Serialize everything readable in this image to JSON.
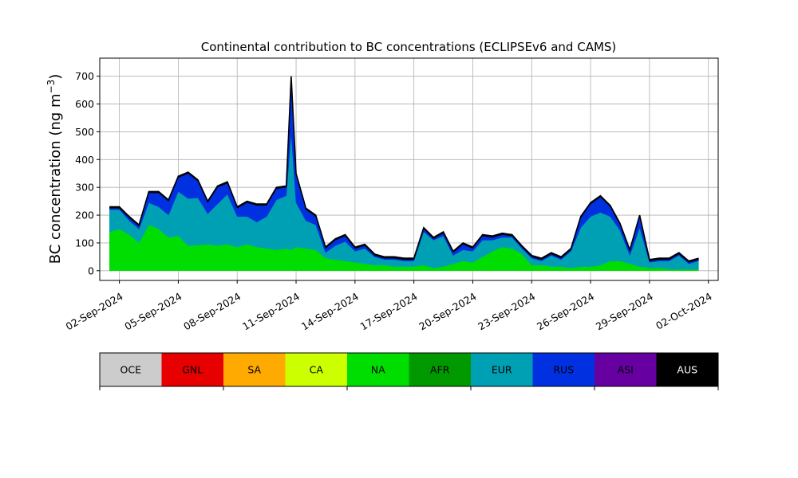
{
  "chart_data": {
    "type": "area",
    "title": "Continental contribution to BC concentrations (ECLIPSEv6 and CAMS)",
    "ylabel": "BC concentration (ng m",
    "ylabel_sup": "−3",
    "ylabel_close": ")",
    "ylim": [
      -35,
      765
    ],
    "xlim": [
      "2024-09-01T00:00",
      "2024-10-02T12:00"
    ],
    "yticks": [
      0,
      100,
      200,
      300,
      400,
      500,
      600,
      700
    ],
    "xticks": [
      "2024-09-02",
      "2024-09-05",
      "2024-09-08",
      "2024-09-11",
      "2024-09-14",
      "2024-09-17",
      "2024-09-20",
      "2024-09-23",
      "2024-09-26",
      "2024-09-29",
      "2024-10-02"
    ],
    "xtick_labels": [
      "02-Sep-2024",
      "05-Sep-2024",
      "08-Sep-2024",
      "11-Sep-2024",
      "14-Sep-2024",
      "17-Sep-2024",
      "20-Sep-2024",
      "23-Sep-2024",
      "26-Sep-2024",
      "29-Sep-2024",
      "02-Oct-2024"
    ],
    "grid": true,
    "stack_order": [
      "NA",
      "EUR",
      "RUS",
      "AUS"
    ],
    "x": [
      "2024-09-01T12:00",
      "2024-09-02T00:00",
      "2024-09-02T12:00",
      "2024-09-03T00:00",
      "2024-09-03T12:00",
      "2024-09-04T00:00",
      "2024-09-04T12:00",
      "2024-09-05T00:00",
      "2024-09-05T12:00",
      "2024-09-06T00:00",
      "2024-09-06T12:00",
      "2024-09-07T00:00",
      "2024-09-07T12:00",
      "2024-09-08T00:00",
      "2024-09-08T12:00",
      "2024-09-09T00:00",
      "2024-09-09T12:00",
      "2024-09-10T00:00",
      "2024-09-10T12:00",
      "2024-09-10T18:00",
      "2024-09-11T00:00",
      "2024-09-11T12:00",
      "2024-09-12T00:00",
      "2024-09-12T12:00",
      "2024-09-13T00:00",
      "2024-09-13T12:00",
      "2024-09-14T00:00",
      "2024-09-14T12:00",
      "2024-09-15T00:00",
      "2024-09-15T12:00",
      "2024-09-16T00:00",
      "2024-09-16T12:00",
      "2024-09-17T00:00",
      "2024-09-17T12:00",
      "2024-09-18T00:00",
      "2024-09-18T12:00",
      "2024-09-19T00:00",
      "2024-09-19T12:00",
      "2024-09-20T00:00",
      "2024-09-20T12:00",
      "2024-09-21T00:00",
      "2024-09-21T12:00",
      "2024-09-22T00:00",
      "2024-09-22T12:00",
      "2024-09-23T00:00",
      "2024-09-23T12:00",
      "2024-09-24T00:00",
      "2024-09-24T12:00",
      "2024-09-25T00:00",
      "2024-09-25T12:00",
      "2024-09-26T00:00",
      "2024-09-26T12:00",
      "2024-09-27T00:00",
      "2024-09-27T12:00",
      "2024-09-28T00:00",
      "2024-09-28T12:00",
      "2024-09-29T00:00",
      "2024-09-29T12:00",
      "2024-09-30T00:00",
      "2024-09-30T12:00",
      "2024-10-01T00:00",
      "2024-10-01T12:00"
    ],
    "series": [
      {
        "name": "NA",
        "color": "#00dd00",
        "values": [
          140,
          150,
          130,
          100,
          165,
          150,
          120,
          125,
          90,
          92,
          95,
          90,
          95,
          85,
          95,
          85,
          80,
          75,
          80,
          75,
          85,
          80,
          75,
          45,
          40,
          35,
          30,
          25,
          20,
          20,
          15,
          15,
          15,
          20,
          10,
          15,
          25,
          35,
          30,
          50,
          70,
          85,
          80,
          60,
          20,
          20,
          15,
          15,
          10,
          15,
          15,
          20,
          35,
          35,
          25,
          15,
          10,
          10,
          5,
          5,
          5,
          5
        ]
      },
      {
        "name": "EUR",
        "color": "#00a0b4",
        "values": [
          80,
          70,
          50,
          50,
          80,
          80,
          80,
          160,
          170,
          170,
          110,
          150,
          180,
          110,
          100,
          90,
          115,
          180,
          190,
          420,
          160,
          100,
          90,
          20,
          50,
          70,
          40,
          55,
          30,
          20,
          25,
          20,
          20,
          120,
          100,
          110,
          30,
          40,
          40,
          60,
          40,
          35,
          40,
          20,
          25,
          15,
          40,
          25,
          60,
          140,
          180,
          190,
          160,
          110,
          30,
          140,
          20,
          25,
          30,
          50,
          20,
          30
        ]
      },
      {
        "name": "RUS",
        "color": "#0030e0",
        "values": [
          5,
          5,
          10,
          10,
          35,
          50,
          50,
          50,
          90,
          60,
          40,
          60,
          40,
          30,
          50,
          60,
          40,
          40,
          30,
          200,
          100,
          40,
          30,
          15,
          20,
          20,
          10,
          10,
          5,
          5,
          5,
          5,
          5,
          10,
          5,
          10,
          10,
          20,
          10,
          15,
          10,
          10,
          5,
          5,
          5,
          5,
          5,
          5,
          5,
          35,
          45,
          55,
          35,
          20,
          15,
          40,
          5,
          5,
          5,
          5,
          5,
          5
        ]
      },
      {
        "name": "AUS",
        "color": "#000000",
        "values": [
          5,
          5,
          5,
          5,
          5,
          5,
          5,
          5,
          5,
          5,
          5,
          5,
          5,
          5,
          5,
          5,
          5,
          5,
          5,
          5,
          5,
          5,
          5,
          5,
          5,
          5,
          5,
          5,
          5,
          5,
          5,
          5,
          5,
          5,
          5,
          5,
          5,
          5,
          5,
          5,
          5,
          5,
          5,
          5,
          5,
          5,
          5,
          5,
          5,
          5,
          5,
          5,
          5,
          5,
          5,
          5,
          5,
          5,
          5,
          5,
          5,
          5
        ]
      }
    ],
    "legend": {
      "placement": "below",
      "entries": [
        {
          "label": "OCE",
          "color": "#cccccc",
          "text_color": "#000000"
        },
        {
          "label": "GNL",
          "color": "#e60000",
          "text_color": "#000000"
        },
        {
          "label": "SA",
          "color": "#ffaa00",
          "text_color": "#000000"
        },
        {
          "label": "CA",
          "color": "#ccff00",
          "text_color": "#000000"
        },
        {
          "label": "NA",
          "color": "#00dd00",
          "text_color": "#000000"
        },
        {
          "label": "AFR",
          "color": "#009900",
          "text_color": "#000000"
        },
        {
          "label": "EUR",
          "color": "#00a0b4",
          "text_color": "#000000"
        },
        {
          "label": "RUS",
          "color": "#0030e0",
          "text_color": "#000000"
        },
        {
          "label": "ASI",
          "color": "#6600a0",
          "text_color": "#000000"
        },
        {
          "label": "AUS",
          "color": "#000000",
          "text_color": "#ffffff"
        }
      ]
    }
  }
}
